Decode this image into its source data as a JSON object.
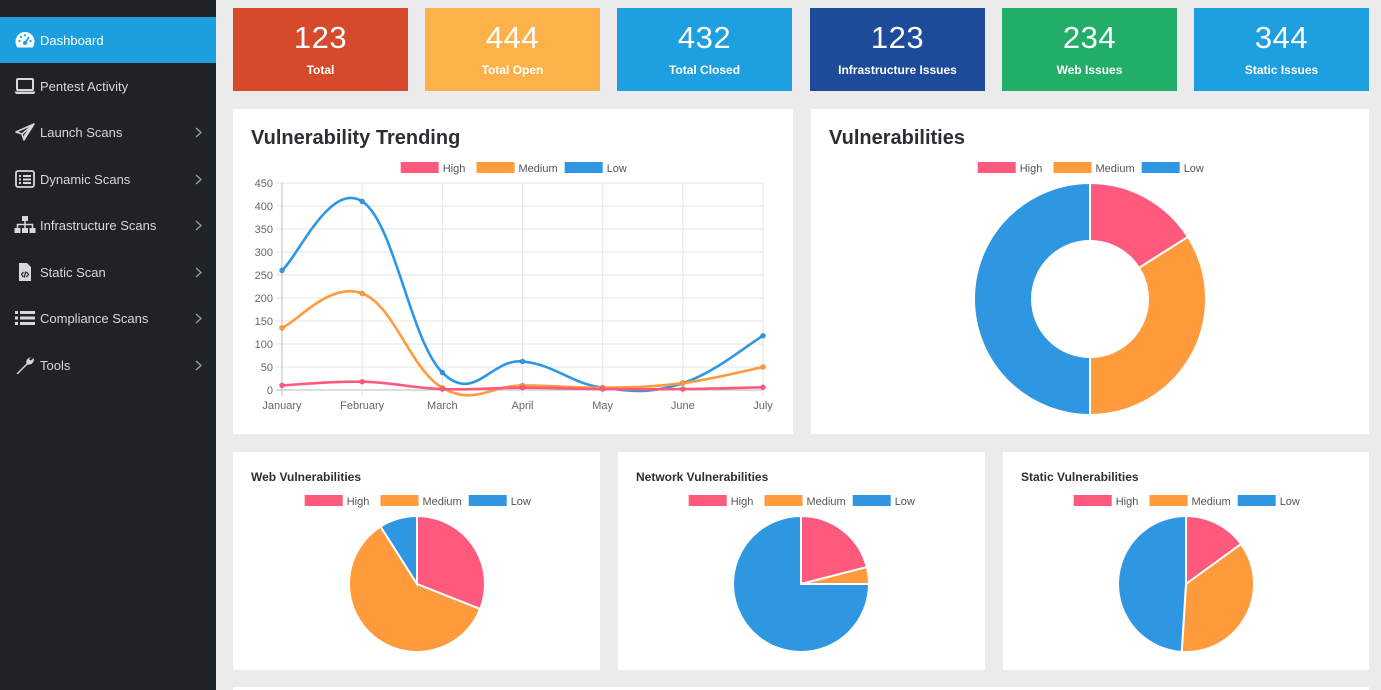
{
  "sidebar": {
    "items": [
      {
        "label": "Dashboard",
        "icon": "dashboard-gauge-icon",
        "active": true,
        "chevron": false
      },
      {
        "label": "Pentest Activity",
        "icon": "laptop-icon",
        "active": false,
        "chevron": false
      },
      {
        "label": "Launch Scans",
        "icon": "paper-plane-icon",
        "active": false,
        "chevron": true
      },
      {
        "label": "Dynamic Scans",
        "icon": "list-box-icon",
        "active": false,
        "chevron": true
      },
      {
        "label": "Infrastructure Scans",
        "icon": "sitemap-icon",
        "active": false,
        "chevron": true
      },
      {
        "label": "Static Scan",
        "icon": "code-file-icon",
        "active": false,
        "chevron": true
      },
      {
        "label": "Compliance Scans",
        "icon": "list-icon",
        "active": false,
        "chevron": true
      },
      {
        "label": "Tools",
        "icon": "wrench-icon",
        "active": false,
        "chevron": true
      }
    ]
  },
  "stats": [
    {
      "value": "123",
      "label": "Total",
      "color": "#d6492a"
    },
    {
      "value": "444",
      "label": "Total Open",
      "color": "#fdb14a"
    },
    {
      "value": "432",
      "label": "Total Closed",
      "color": "#1d9fe0"
    },
    {
      "value": "123",
      "label": "Infrastructure Issues",
      "color": "#1d4b99"
    },
    {
      "value": "234",
      "label": "Web Issues",
      "color": "#22ad69"
    },
    {
      "value": "344",
      "label": "Static Issues",
      "color": "#1d9fe0"
    }
  ],
  "legend_labels": [
    "High",
    "Medium",
    "Low"
  ],
  "colors": {
    "high": "#ff5a7e",
    "medium": "#ff9a3d",
    "low": "#2f97e2"
  },
  "panels": {
    "trending_title": "Vulnerability Trending",
    "vulns_title": "Vulnerabilities",
    "web_title": "Web Vulnerabilities",
    "network_title": "Network Vulnerabilities",
    "static_title": "Static Vulnerabilities"
  },
  "chart_data": [
    {
      "type": "line",
      "title": "Vulnerability Trending",
      "categories": [
        "January",
        "February",
        "March",
        "April",
        "May",
        "June",
        "July"
      ],
      "ylim": [
        0,
        450
      ],
      "yticks": [
        0,
        50,
        100,
        150,
        200,
        250,
        300,
        350,
        400,
        450
      ],
      "grid": true,
      "legend": "top",
      "series": [
        {
          "name": "High",
          "values": [
            10,
            18,
            2,
            5,
            2,
            2,
            6
          ]
        },
        {
          "name": "Medium",
          "values": [
            135,
            210,
            5,
            10,
            5,
            15,
            50
          ]
        },
        {
          "name": "Low",
          "values": [
            260,
            410,
            38,
            62,
            5,
            15,
            118
          ]
        }
      ]
    },
    {
      "type": "pie",
      "title": "Vulnerabilities",
      "donut": true,
      "legend": "top",
      "labels": [
        "High",
        "Medium",
        "Low"
      ],
      "values": [
        16,
        34,
        50
      ]
    },
    {
      "type": "pie",
      "title": "Web Vulnerabilities",
      "legend": "top",
      "labels": [
        "High",
        "Medium",
        "Low"
      ],
      "values": [
        31,
        60,
        9
      ]
    },
    {
      "type": "pie",
      "title": "Network Vulnerabilities",
      "legend": "top",
      "labels": [
        "High",
        "Medium",
        "Low"
      ],
      "values": [
        21,
        4,
        75
      ]
    },
    {
      "type": "pie",
      "title": "Static Vulnerabilities",
      "legend": "top",
      "labels": [
        "High",
        "Medium",
        "Low"
      ],
      "values": [
        15,
        36,
        49
      ]
    }
  ]
}
